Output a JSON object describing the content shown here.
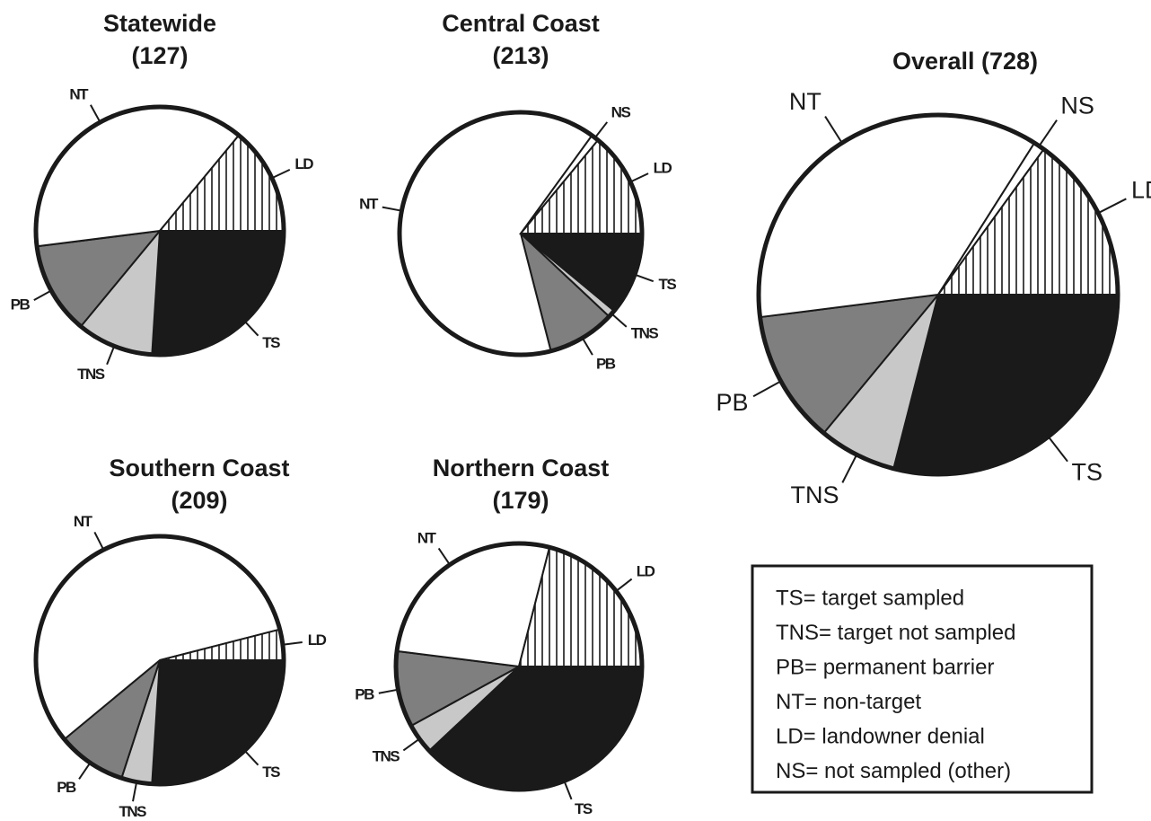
{
  "chart_data": [
    {
      "type": "pie",
      "title": "Statewide",
      "subtitle": "(127)",
      "labels": [
        "TS",
        "TNS",
        "PB",
        "NT",
        "LD"
      ],
      "values": [
        26,
        10,
        12,
        38,
        14
      ],
      "colors": [
        "#1a1a1a",
        "#c8c8c8",
        "#7f7f7f",
        "#ffffff",
        "hatch"
      ]
    },
    {
      "type": "pie",
      "title": "Central Coast",
      "subtitle": "(213)",
      "labels": [
        "TS",
        "TNS",
        "PB",
        "NT",
        "NS",
        "LD"
      ],
      "values": [
        11,
        1,
        9,
        64,
        1,
        14
      ],
      "colors": [
        "#1a1a1a",
        "#c8c8c8",
        "#7f7f7f",
        "#ffffff",
        "#ffffff",
        "hatch"
      ]
    },
    {
      "type": "pie",
      "title": "Overall (728)",
      "labels": [
        "TS",
        "TNS",
        "PB",
        "NT",
        "NS",
        "LD"
      ],
      "values": [
        29,
        7,
        12,
        36,
        1,
        15
      ],
      "colors": [
        "#1a1a1a",
        "#c8c8c8",
        "#7f7f7f",
        "#ffffff",
        "#ffffff",
        "hatch"
      ]
    },
    {
      "type": "pie",
      "title": "Southern Coast",
      "subtitle": "(209)",
      "labels": [
        "TS",
        "TNS",
        "PB",
        "NT",
        "LD"
      ],
      "values": [
        26,
        4,
        9,
        57,
        4
      ],
      "colors": [
        "#1a1a1a",
        "#c8c8c8",
        "#7f7f7f",
        "#ffffff",
        "hatch"
      ]
    },
    {
      "type": "pie",
      "title": "Northern Coast",
      "subtitle": "(179)",
      "labels": [
        "TS",
        "TNS",
        "PB",
        "NT",
        "LD"
      ],
      "values": [
        38,
        4,
        10,
        27,
        21
      ],
      "colors": [
        "#1a1a1a",
        "#c8c8c8",
        "#7f7f7f",
        "#ffffff",
        "hatch"
      ]
    }
  ],
  "legend": {
    "items": [
      "TS= target sampled",
      "TNS= target not sampled",
      "PB= permanent barrier",
      "NT= non-target",
      "LD= landowner denial",
      "NS= not sampled (other)"
    ]
  }
}
